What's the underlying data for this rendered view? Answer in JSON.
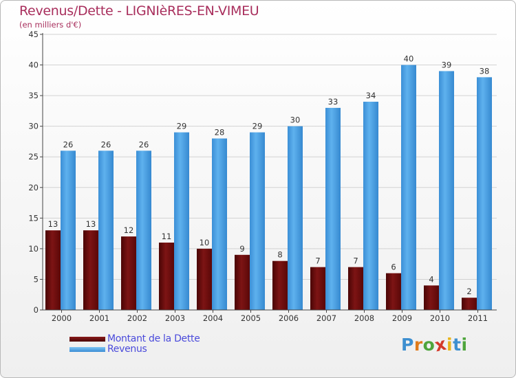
{
  "title": "Revenus/Dette - LIGNIèRES-EN-VIMEU",
  "subtitle": "(en milliers d'€)",
  "legend": [
    {
      "label": "Montant de la Dette",
      "color": "#6b0a0a"
    },
    {
      "label": "Revenus",
      "color": "#4fa6e8"
    }
  ],
  "brand": {
    "letters": [
      "P",
      "r",
      "o",
      "x",
      "i",
      "t",
      "i"
    ],
    "colors": [
      "#3d8fd0",
      "#e07b1a",
      "#4ea53c",
      "#d43a2a",
      "#e8b51c",
      "#3d8fd0",
      "#4ea53c"
    ]
  },
  "chart_data": {
    "type": "bar",
    "title": "Revenus/Dette - LIGNIèRES-EN-VIMEU",
    "subtitle": "(en milliers d'€)",
    "categories": [
      "2000",
      "2001",
      "2002",
      "2003",
      "2004",
      "2005",
      "2006",
      "2007",
      "2008",
      "2009",
      "2010",
      "2011"
    ],
    "series": [
      {
        "name": "Montant de la Dette",
        "color": "#6b0a0a",
        "values": [
          13,
          13,
          12,
          11,
          10,
          9,
          8,
          7,
          7,
          6,
          4,
          2
        ]
      },
      {
        "name": "Revenus",
        "color": "#4fa6e8",
        "values": [
          26,
          26,
          26,
          29,
          28,
          29,
          30,
          33,
          34,
          40,
          39,
          38
        ]
      }
    ],
    "ylim": [
      0,
      45
    ],
    "yticks": [
      0,
      5,
      10,
      15,
      20,
      25,
      30,
      35,
      40,
      45
    ],
    "grid": "horizontal",
    "legend_position": "bottom-left"
  }
}
